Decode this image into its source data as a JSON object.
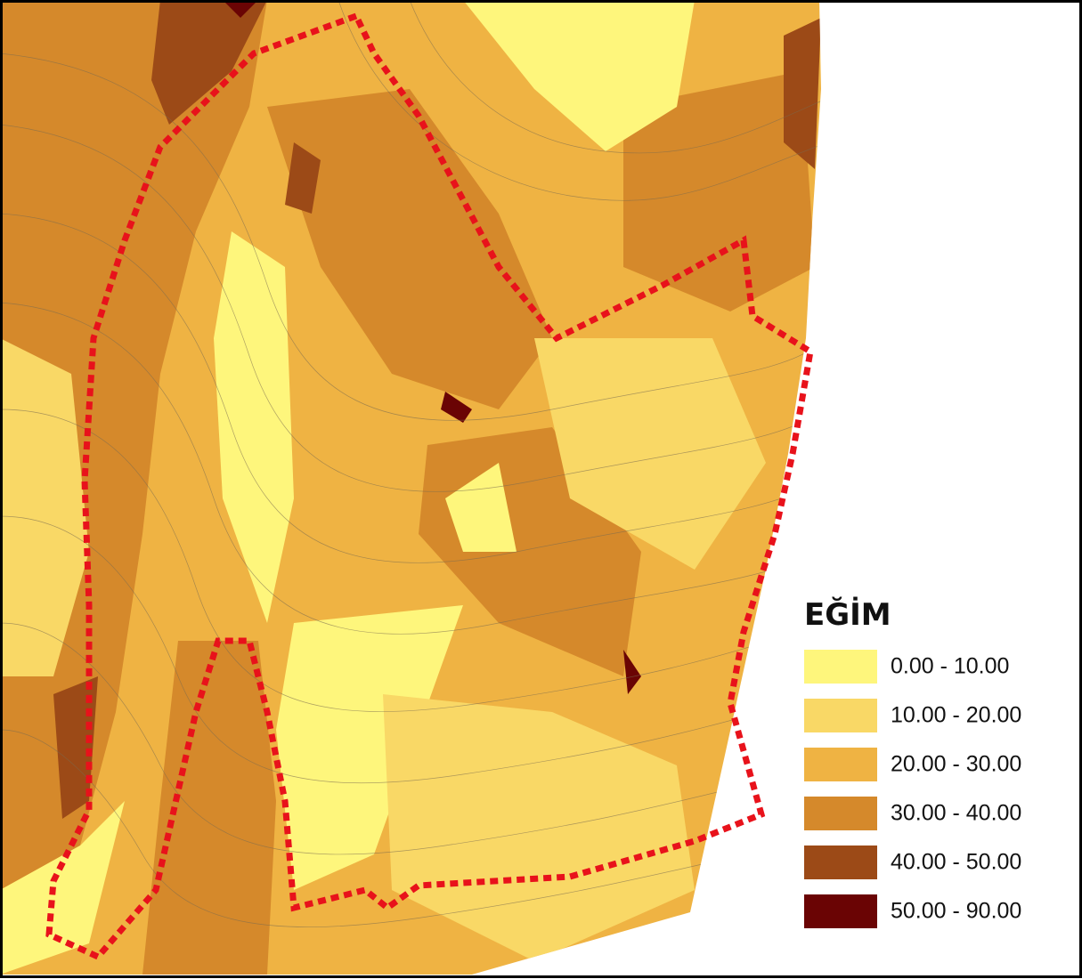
{
  "legend": {
    "title": "EĞİM",
    "items": [
      {
        "label": "0.00 - 10.00",
        "color": "#fef67c"
      },
      {
        "label": "10.00 - 20.00",
        "color": "#f9d866"
      },
      {
        "label": "20.00 - 30.00",
        "color": "#efb343"
      },
      {
        "label": "30.00 - 40.00",
        "color": "#d5892b"
      },
      {
        "label": "40.00 - 50.00",
        "color": "#9c4a17"
      },
      {
        "label": "50.00 - 90.00",
        "color": "#6a0404"
      }
    ]
  }
}
